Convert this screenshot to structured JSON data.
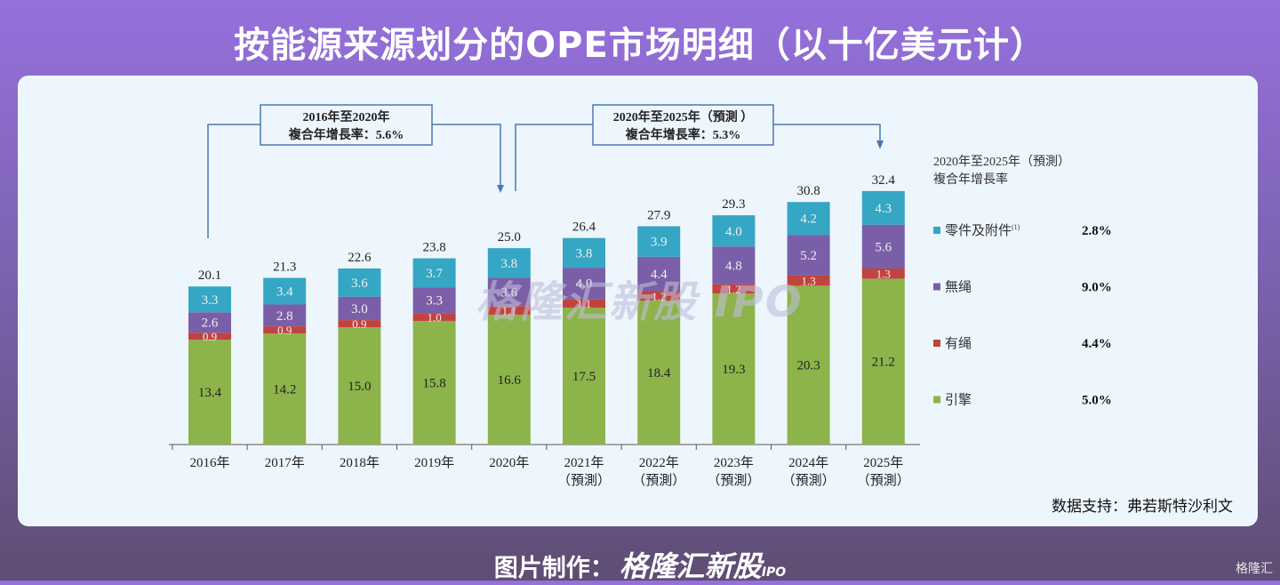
{
  "title": "按能源来源划分的OPE市场明细（以十亿美元计）",
  "chart_data": {
    "type": "bar",
    "stacked": true,
    "categories": [
      "2016年",
      "2017年",
      "2018年",
      "2019年",
      "2020年",
      "2021年",
      "2022年",
      "2023年",
      "2024年",
      "2025年"
    ],
    "forecast_label": "（預測）",
    "forecast_flags": [
      false,
      false,
      false,
      false,
      false,
      true,
      true,
      true,
      true,
      true
    ],
    "series": [
      {
        "name": "引擎",
        "color": "#8db34b",
        "values": [
          13.4,
          14.2,
          15.0,
          15.8,
          16.6,
          17.5,
          18.4,
          19.3,
          20.3,
          21.2
        ],
        "cagr": "5.0%"
      },
      {
        "name": "有绳",
        "color": "#c1433f",
        "values": [
          0.9,
          0.9,
          0.9,
          1.0,
          1.1,
          1.1,
          1.2,
          1.2,
          1.3,
          1.3
        ],
        "cagr": "4.4%"
      },
      {
        "name": "無绳",
        "color": "#7a5fa8",
        "values": [
          2.6,
          2.8,
          3.0,
          3.3,
          3.6,
          4.0,
          4.4,
          4.8,
          5.2,
          5.6
        ],
        "cagr": "9.0%"
      },
      {
        "name": "零件及附件",
        "superscript": "(1)",
        "color": "#35a6c3",
        "values": [
          3.3,
          3.4,
          3.6,
          3.7,
          3.8,
          3.8,
          3.9,
          4.0,
          4.2,
          4.3
        ],
        "cagr": "2.8%"
      }
    ],
    "totals": [
      "20.1",
      "21.3",
      "22.6",
      "23.8",
      "25.0",
      "26.4",
      "27.9",
      "29.3",
      "30.8",
      "32.4"
    ],
    "annotations": [
      {
        "line1": "2016年至2020年",
        "line2": "複合年增長率：5.6%"
      },
      {
        "line1": "2020年至2025年（預測 ）",
        "line2": "複合年增長率：5.3%"
      }
    ],
    "legend_title": [
      "2020年至2025年（預測）",
      "複合年增長率"
    ],
    "ylim": [
      0,
      35
    ]
  },
  "source": "数据支持：弗若斯特沙利文",
  "watermark": "格隆汇新股 IPO",
  "footer": {
    "label": "图片制作：",
    "logo": "格隆汇新股",
    "ipo": "IPO"
  },
  "corner_logo": "格隆汇"
}
